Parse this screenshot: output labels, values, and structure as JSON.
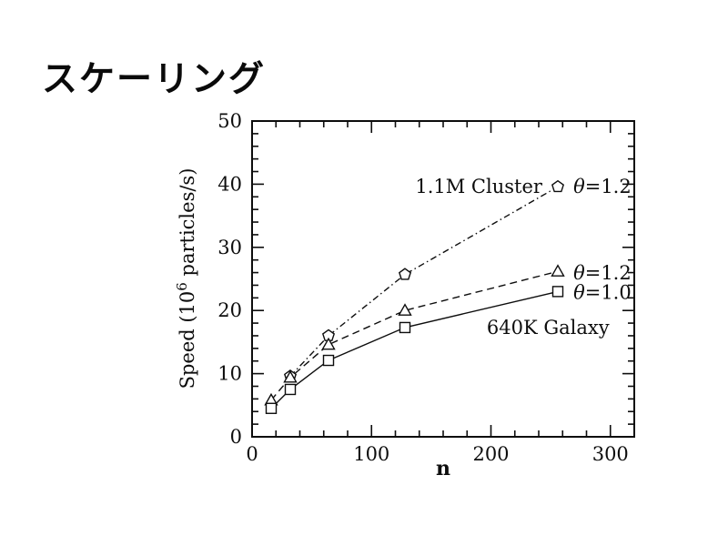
{
  "title": "スケーリング",
  "page": {
    "background": "#ffffff",
    "ink": "#0d0d0d"
  },
  "chart_data": {
    "type": "line",
    "title": "",
    "xlabel": "n",
    "ylabel_parts": {
      "pre": "Speed (10",
      "sup": "6",
      "post": " particles/s)"
    },
    "xlim": [
      0,
      320
    ],
    "ylim": [
      0,
      50
    ],
    "x_major_ticks": [
      0,
      100,
      200,
      300
    ],
    "x_minor_step": 20,
    "y_major_ticks": [
      0,
      10,
      20,
      30,
      40,
      50
    ],
    "y_minor_step": 2,
    "grid": false,
    "legend_position": "none",
    "axis_color": "#0d0d0d",
    "series": [
      {
        "name": "1.1M Cluster θ=1.2",
        "slug": "1-1m-cluster-theta-1-2",
        "marker": "pentagon",
        "linestyle": "dashdot",
        "x": [
          32,
          64,
          128,
          256
        ],
        "y": [
          9.6,
          16.0,
          25.7,
          39.6
        ]
      },
      {
        "name": "640K Galaxy θ=1.2",
        "slug": "640k-galaxy-theta-1-2",
        "marker": "triangle",
        "linestyle": "dashed",
        "x": [
          16,
          32,
          64,
          128,
          256
        ],
        "y": [
          5.8,
          9.4,
          14.6,
          20.0,
          26.2
        ]
      },
      {
        "name": "640K Galaxy θ=1.0",
        "slug": "640k-galaxy-theta-1-0",
        "marker": "square",
        "linestyle": "solid",
        "x": [
          16,
          32,
          64,
          128,
          256
        ],
        "y": [
          4.5,
          7.5,
          12.1,
          17.3,
          23.0
        ]
      }
    ],
    "annotations": [
      {
        "id": "cluster-series-label",
        "text": "1.1M Cluster",
        "x": 243,
        "y": 38.6,
        "anchor": "end",
        "math": false
      },
      {
        "id": "theta-label-cluster-1-2",
        "text": "θ=1.2",
        "x": 269,
        "y": 38.6,
        "anchor": "start",
        "math": true
      },
      {
        "id": "theta-label-galaxy-1-2",
        "text": "θ=1.2",
        "x": 269,
        "y": 24.9,
        "anchor": "start",
        "math": true
      },
      {
        "id": "theta-label-galaxy-1-0",
        "text": "θ=1.0",
        "x": 269,
        "y": 21.8,
        "anchor": "start",
        "math": true
      },
      {
        "id": "galaxy-series-label",
        "text": "640K Galaxy",
        "x": 196.5,
        "y": 16.3,
        "anchor": "start",
        "math": false
      }
    ]
  }
}
